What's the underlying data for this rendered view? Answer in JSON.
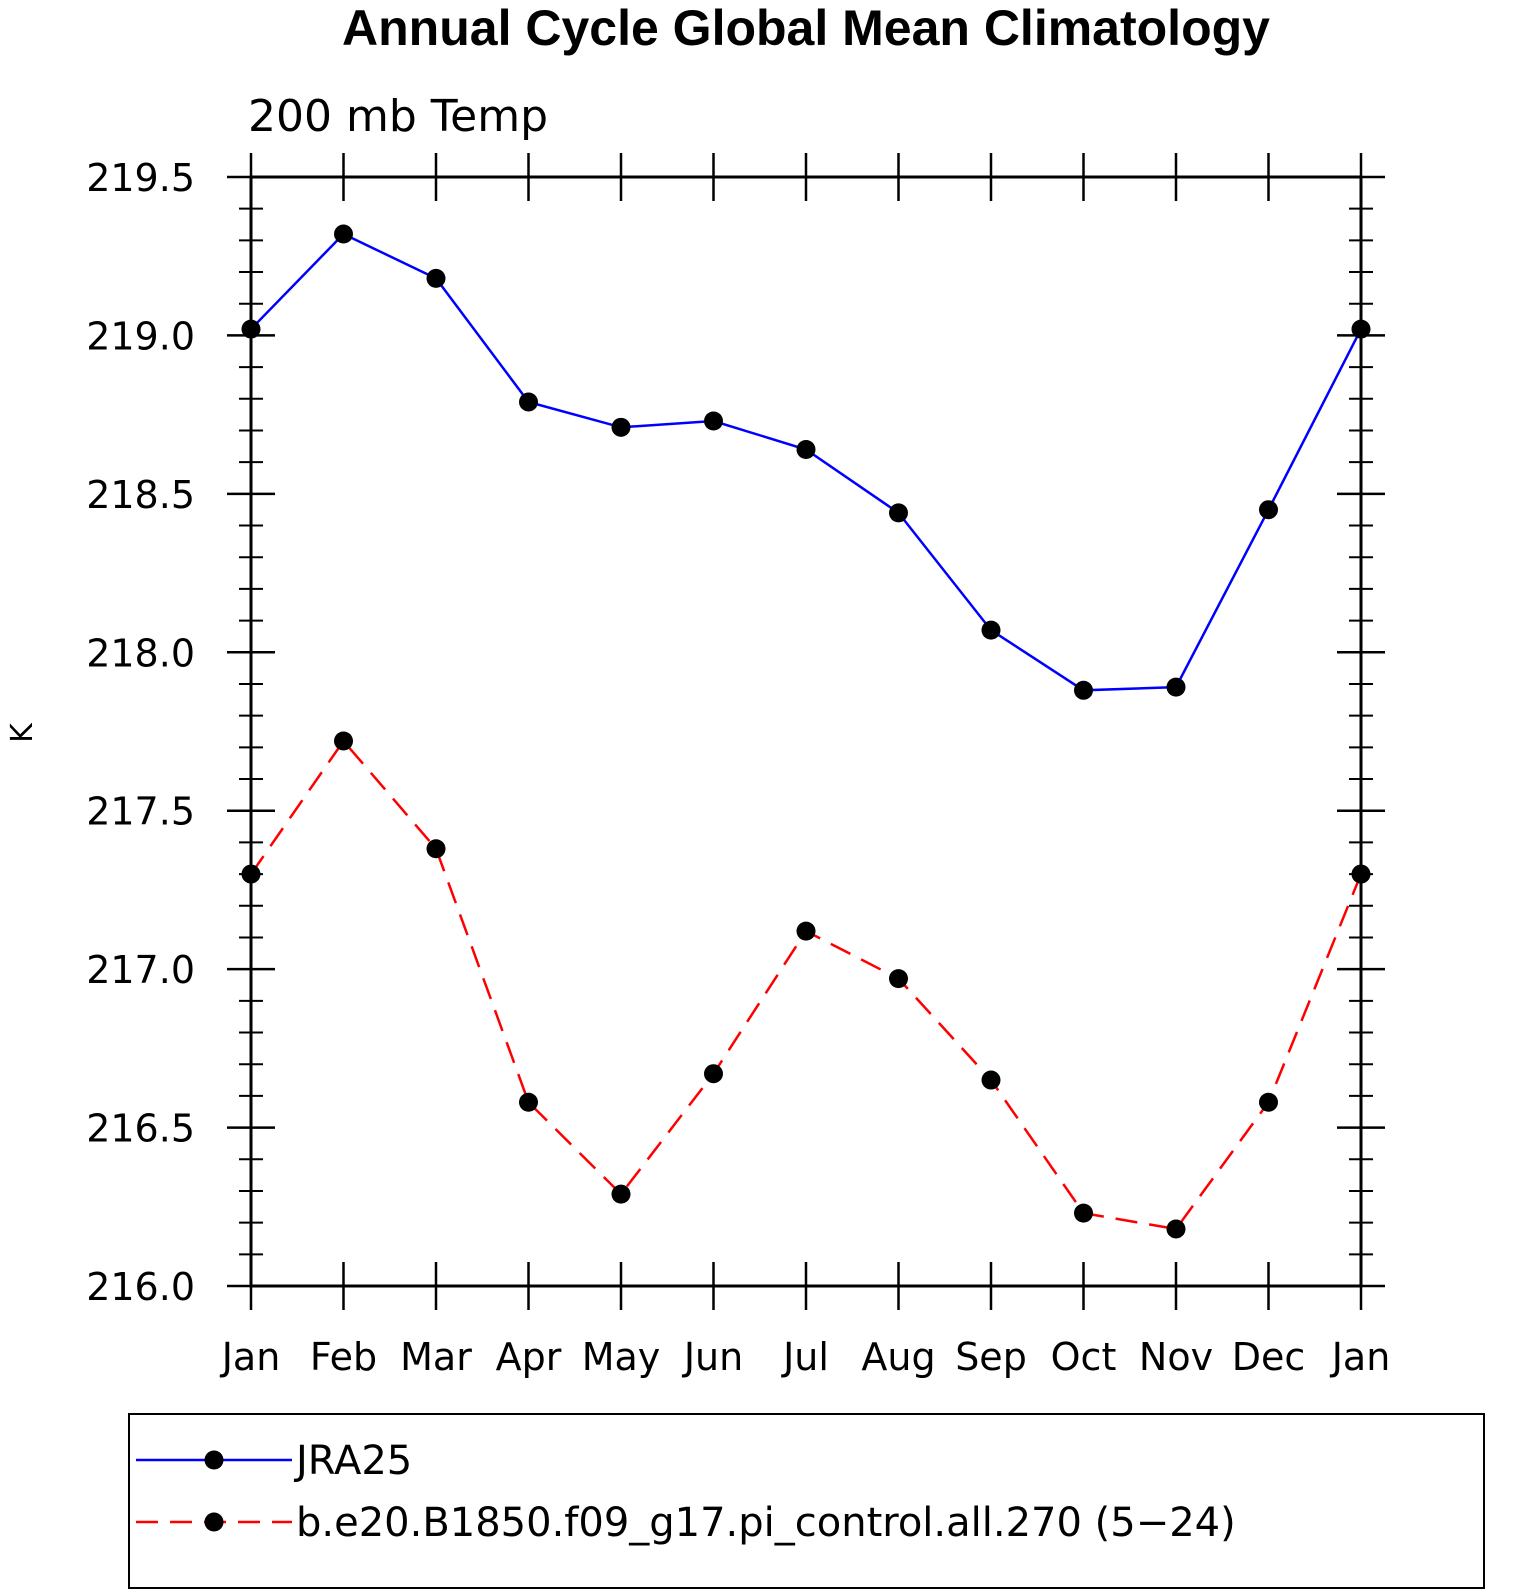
{
  "chart_data": {
    "type": "line",
    "title": "Annual Cycle Global Mean Climatology",
    "subtitle": "200 mb Temp",
    "xlabel": "",
    "ylabel": "K",
    "categories": [
      "Jan",
      "Feb",
      "Mar",
      "Apr",
      "May",
      "Jun",
      "Jul",
      "Aug",
      "Sep",
      "Oct",
      "Nov",
      "Dec",
      "Jan"
    ],
    "yticks": [
      "216.0",
      "216.5",
      "217.0",
      "217.5",
      "218.0",
      "218.5",
      "219.0",
      "219.5"
    ],
    "ylim": [
      216.0,
      219.5
    ],
    "series": [
      {
        "name": "JRA25",
        "color": "#0000ff",
        "style": "solid",
        "values": [
          219.02,
          219.32,
          219.18,
          218.79,
          218.71,
          218.73,
          218.64,
          218.44,
          218.07,
          217.88,
          217.89,
          218.45,
          219.02
        ]
      },
      {
        "name": "b.e20.B1850.f09_g17.pi_control.all.270 (5−24)",
        "color": "#ff0000",
        "style": "dashed",
        "values": [
          217.3,
          217.72,
          217.38,
          216.58,
          216.29,
          216.67,
          217.12,
          216.97,
          216.65,
          216.23,
          216.18,
          216.58,
          217.3
        ]
      }
    ],
    "legend": "bottom"
  }
}
